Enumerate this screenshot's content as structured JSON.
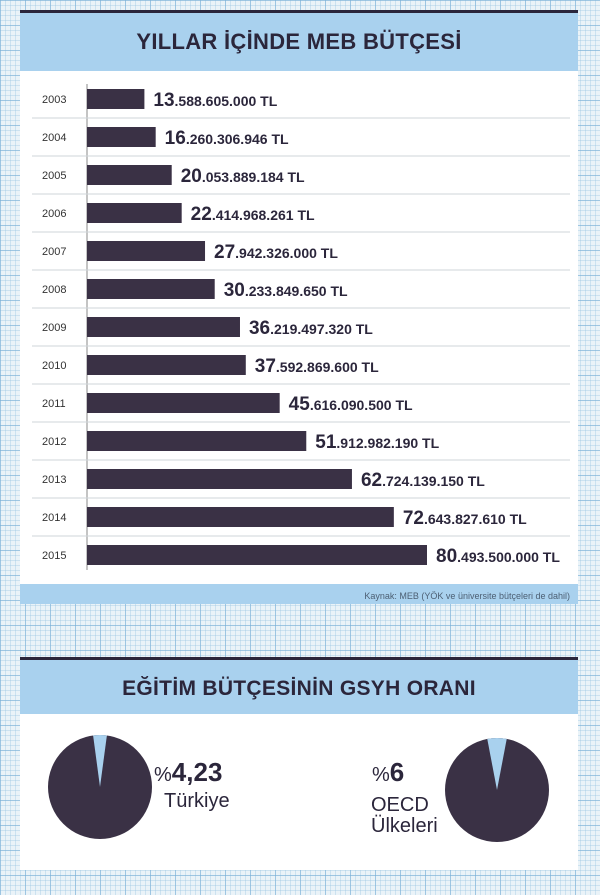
{
  "budget": {
    "title": "YILLAR İÇİNDE MEB BÜTÇESİ",
    "source": "Kaynak: MEB  (YÖK ve üniversite bütçeleri de dahil)"
  },
  "chart_data": [
    {
      "type": "bar",
      "orientation": "horizontal",
      "title": "YILLAR İÇİNDE MEB BÜTÇESİ",
      "categories": [
        "2003",
        "2004",
        "2005",
        "2006",
        "2007",
        "2008",
        "2009",
        "2010",
        "2011",
        "2012",
        "2013",
        "2014",
        "2015"
      ],
      "values": [
        13588605000,
        16260306946,
        20053889184,
        22414968261,
        27942326000,
        30233849650,
        36219497320,
        37592869600,
        45616090500,
        51912982190,
        62724139150,
        72643827610,
        80493500000
      ],
      "value_labels": [
        {
          "big": "13",
          "rest": ".588.605.000 TL"
        },
        {
          "big": "16",
          "rest": ".260.306.946 TL"
        },
        {
          "big": "20",
          "rest": ".053.889.184 TL"
        },
        {
          "big": "22",
          "rest": ".414.968.261 TL"
        },
        {
          "big": "27",
          "rest": ".942.326.000 TL"
        },
        {
          "big": "30",
          "rest": ".233.849.650 TL"
        },
        {
          "big": "36",
          "rest": ".219.497.320 TL"
        },
        {
          "big": "37",
          "rest": ".592.869.600 TL"
        },
        {
          "big": "45",
          "rest": ".616.090.500 TL"
        },
        {
          "big": "51",
          "rest": ".912.982.190 TL"
        },
        {
          "big": "62",
          "rest": ".724.139.150 TL"
        },
        {
          "big": "72",
          "rest": ".643.827.610 TL"
        },
        {
          "big": "80",
          "rest": ".493.500.000 TL"
        }
      ],
      "bar_color": "#3a3145",
      "grid": true
    },
    {
      "type": "pie",
      "title": "EĞİTİM BÜTÇESİNİN GSYH ORANI",
      "categories": [
        "Türkiye",
        "OECD Ülkeleri"
      ],
      "values": [
        4.23,
        6
      ],
      "colors": {
        "share": "#a9d1ee",
        "rest": "#3a3145"
      }
    }
  ],
  "gsyh": {
    "title": "EĞİTİM BÜTÇESİNİN GSYH ORANI",
    "turkey": {
      "percent_sign": "%",
      "value": "4,23",
      "label": "Türkiye"
    },
    "oecd": {
      "percent_sign": "%",
      "value": "6",
      "label_line1": "OECD",
      "label_line2": "Ülkeleri"
    }
  }
}
